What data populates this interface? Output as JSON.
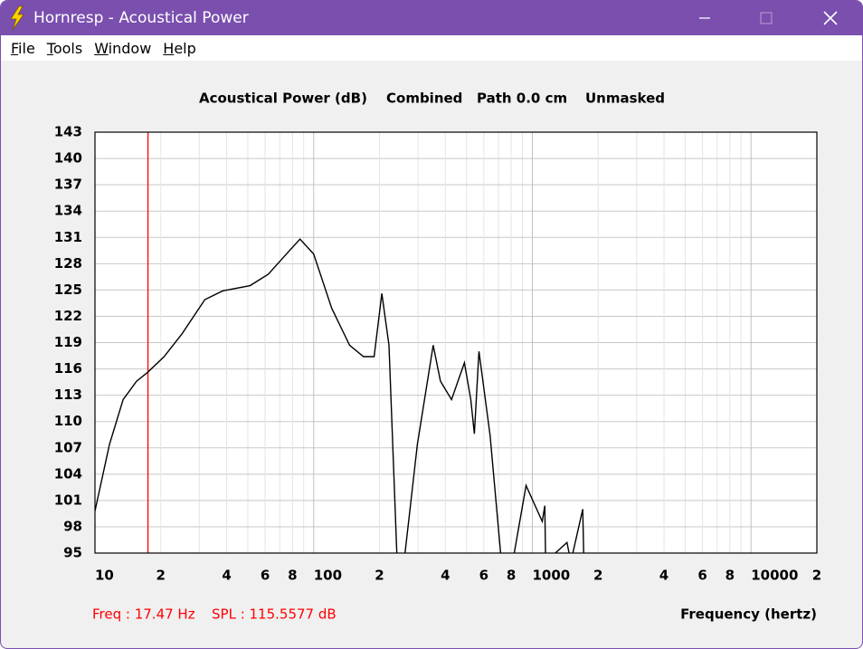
{
  "window": {
    "title": "Hornresp - Acoustical Power"
  },
  "menu": [
    "File",
    "Tools",
    "Window",
    "Help"
  ],
  "chart_data": {
    "type": "line",
    "title_parts": [
      "Acoustical Power (dB)",
      "Combined",
      "Path 0.0 cm",
      "Unmasked"
    ],
    "x_label": "Frequency (hertz)",
    "log_x": true,
    "grid": true,
    "xlim": [
      10,
      20000
    ],
    "ylim": [
      95,
      143
    ],
    "yticks": [
      95,
      98,
      101,
      104,
      107,
      110,
      113,
      116,
      119,
      122,
      125,
      128,
      131,
      134,
      137,
      140,
      143
    ],
    "xticks": [
      10,
      {
        "value": 20,
        "label": "2"
      },
      {
        "value": 40,
        "label": "4"
      },
      {
        "value": 60,
        "label": "6"
      },
      {
        "value": 80,
        "label": "8"
      },
      100,
      {
        "value": 200,
        "label": "2"
      },
      {
        "value": 400,
        "label": "4"
      },
      {
        "value": 600,
        "label": "6"
      },
      {
        "value": 800,
        "label": "8"
      },
      1000,
      {
        "value": 2000,
        "label": "2"
      },
      {
        "value": 4000,
        "label": "4"
      },
      {
        "value": 6000,
        "label": "6"
      },
      {
        "value": 8000,
        "label": "8"
      },
      10000,
      {
        "value": 20000,
        "label": "2"
      }
    ],
    "xgrid": [
      30,
      50,
      70,
      90,
      300,
      500,
      700,
      900,
      3000,
      5000,
      7000,
      9000
    ],
    "series": [
      {
        "color": "#000000",
        "x": [
          10,
          11.65,
          13.45,
          15.5,
          17.4,
          20.7,
          25,
          31.8,
          38.4,
          51.2,
          62,
          75,
          86.6,
          100,
          121,
          146,
          169,
          189,
          205,
          221,
          240,
          259,
          298,
          352,
          380,
          427,
          489,
          523,
          543,
          570,
          641,
          722,
          813,
          936,
          1110,
          1140,
          1150,
          1440,
          1500,
          1700,
          1720
        ],
        "values": [
          99.8,
          107.4,
          112.5,
          114.6,
          115.6,
          117.4,
          120,
          123.9,
          124.9,
          125.5,
          126.8,
          129.1,
          130.8,
          129.1,
          122.9,
          118.7,
          117.4,
          117.4,
          124.6,
          118.7,
          95,
          94,
          107.4,
          118.7,
          114.6,
          112.5,
          116.7,
          112.5,
          108.6,
          118,
          108.4,
          94,
          94,
          102.7,
          98.6,
          100.4,
          94,
          96.2,
          94,
          100,
          94
        ]
      }
    ]
  },
  "status": {
    "freq": "Freq : 17.47 Hz",
    "spl": "SPL : 115.5577 dB",
    "cursor_freq": 17.47,
    "cursor_color": "#ff0000"
  }
}
